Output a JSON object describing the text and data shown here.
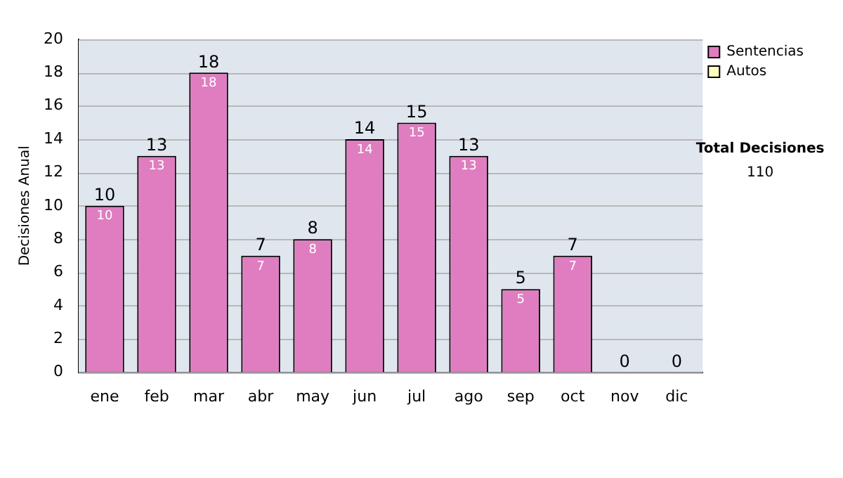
{
  "chart_data": {
    "type": "bar",
    "stacked": true,
    "categories": [
      "ene",
      "feb",
      "mar",
      "abr",
      "may",
      "jun",
      "jul",
      "ago",
      "sep",
      "oct",
      "nov",
      "dic"
    ],
    "series": [
      {
        "name": "Sentencias",
        "color": "#e07dc0",
        "values": [
          10,
          13,
          18,
          7,
          8,
          14,
          15,
          13,
          5,
          7,
          0,
          0
        ],
        "value_labels": [
          "10",
          "13",
          "18",
          "7",
          "8",
          "14",
          "15",
          "13",
          "5",
          "7",
          null,
          null
        ]
      },
      {
        "name": "Autos",
        "color": "#ffffc0",
        "values": [
          0,
          0,
          0,
          0,
          0,
          0,
          0,
          0,
          0,
          0,
          0,
          0
        ]
      }
    ],
    "totals": [
      "10",
      "13",
      "18",
      "7",
      "8",
      "14",
      "15",
      "13",
      "5",
      "7",
      "0",
      "0"
    ],
    "ylabel": "Decisiones Anual",
    "ylim": [
      0,
      20
    ],
    "yticks": [
      0,
      2,
      4,
      6,
      8,
      10,
      12,
      14,
      16,
      18,
      20
    ],
    "grid": "y",
    "legend": "right",
    "annotations": [
      "Total Decisiones",
      "110"
    ]
  }
}
